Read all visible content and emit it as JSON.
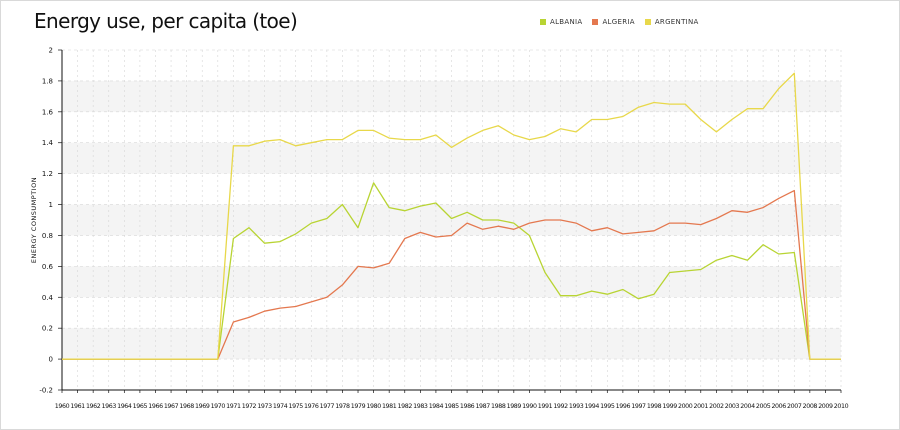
{
  "title": "Energy use, per capita (toe)",
  "colors": {
    "band": "#f4f4f4",
    "grid": "#d6d6d6",
    "axis": "#111111"
  },
  "chart_data": {
    "type": "line",
    "title": "Energy use, per capita (toe)",
    "xlabel": "",
    "ylabel": "ENERGY CONSUMPTION",
    "xlim": [
      1960,
      2010
    ],
    "ylim": [
      -0.2,
      2
    ],
    "y_ticks": [
      -0.2,
      0,
      0.2,
      0.4,
      0.6,
      0.8,
      1,
      1.2,
      1.4,
      1.6,
      1.8,
      2
    ],
    "grid": true,
    "legend_position": "top-right",
    "x": [
      1960,
      1961,
      1962,
      1963,
      1964,
      1965,
      1966,
      1967,
      1968,
      1969,
      1970,
      1971,
      1972,
      1973,
      1974,
      1975,
      1976,
      1977,
      1978,
      1979,
      1980,
      1981,
      1982,
      1983,
      1984,
      1985,
      1986,
      1987,
      1988,
      1989,
      1990,
      1991,
      1992,
      1993,
      1994,
      1995,
      1996,
      1997,
      1998,
      1999,
      2000,
      2001,
      2002,
      2003,
      2004,
      2005,
      2006,
      2007,
      2008,
      2009,
      2010
    ],
    "series": [
      {
        "name": "ALBANIA",
        "color": "#b8d433",
        "values": [
          0,
          0,
          0,
          0,
          0,
          0,
          0,
          0,
          0,
          0,
          0,
          0.78,
          0.85,
          0.75,
          0.76,
          0.81,
          0.88,
          0.91,
          1.0,
          0.85,
          1.14,
          0.98,
          0.96,
          0.99,
          1.01,
          0.91,
          0.95,
          0.9,
          0.9,
          0.88,
          0.8,
          0.56,
          0.41,
          0.41,
          0.44,
          0.42,
          0.45,
          0.39,
          0.42,
          0.56,
          0.57,
          0.58,
          0.64,
          0.67,
          0.64,
          0.74,
          0.68,
          0.69,
          0,
          0,
          0
        ]
      },
      {
        "name": "ALGERIA",
        "color": "#e4784f",
        "values": [
          0,
          0,
          0,
          0,
          0,
          0,
          0,
          0,
          0,
          0,
          0,
          0.24,
          0.27,
          0.31,
          0.33,
          0.34,
          0.37,
          0.4,
          0.48,
          0.6,
          0.59,
          0.62,
          0.78,
          0.82,
          0.79,
          0.8,
          0.88,
          0.84,
          0.86,
          0.84,
          0.88,
          0.9,
          0.9,
          0.88,
          0.83,
          0.85,
          0.81,
          0.82,
          0.83,
          0.88,
          0.88,
          0.87,
          0.91,
          0.96,
          0.95,
          0.98,
          1.04,
          1.09,
          0,
          0,
          0
        ]
      },
      {
        "name": "ARGENTINA",
        "color": "#e8d84a",
        "values": [
          0,
          0,
          0,
          0,
          0,
          0,
          0,
          0,
          0,
          0,
          0,
          1.38,
          1.38,
          1.41,
          1.42,
          1.38,
          1.4,
          1.42,
          1.42,
          1.48,
          1.48,
          1.43,
          1.42,
          1.42,
          1.45,
          1.37,
          1.43,
          1.48,
          1.51,
          1.45,
          1.42,
          1.44,
          1.49,
          1.47,
          1.55,
          1.55,
          1.57,
          1.63,
          1.66,
          1.65,
          1.65,
          1.55,
          1.47,
          1.55,
          1.62,
          1.62,
          1.75,
          1.85,
          0,
          0,
          0
        ]
      }
    ]
  }
}
